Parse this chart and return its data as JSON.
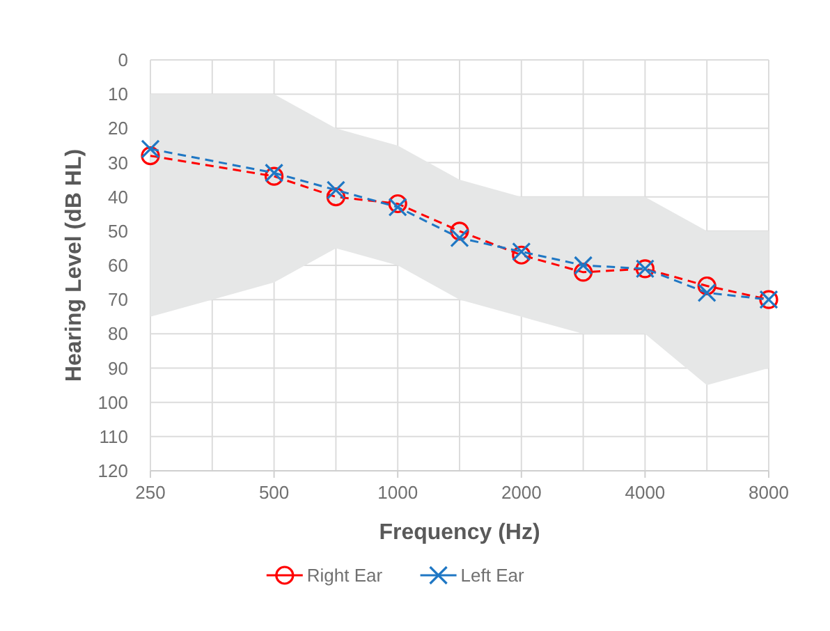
{
  "chart_data": {
    "type": "line",
    "xlabel": "Frequency (Hz)",
    "ylabel": "Hearing Level (dB HL)",
    "categories": [
      "250",
      null,
      "500",
      null,
      "1000",
      null,
      "2000",
      null,
      "4000",
      null,
      "8000"
    ],
    "series": [
      {
        "type": "area",
        "color": "#e6e7e7",
        "values": [
          null,
          null,
          null,
          null,
          null,
          null,
          null,
          null,
          null,
          null,
          null
        ],
        "lower": [
          75,
          70,
          65,
          55,
          60,
          70,
          75,
          80,
          80,
          95,
          90
        ],
        "upper": [
          10,
          10,
          10,
          20,
          25,
          35,
          40,
          40,
          40,
          50,
          50
        ]
      },
      {
        "name": "Right Ear",
        "color": "#ff0000",
        "marker": "circle",
        "values": [
          28,
          null,
          34,
          40,
          42,
          50,
          57,
          62,
          61,
          66,
          70
        ]
      },
      {
        "name": "Left Ear",
        "color": "#1f77c4",
        "marker": "cross",
        "values": [
          26,
          null,
          33,
          38,
          43,
          52,
          56,
          60,
          61,
          68,
          70
        ]
      }
    ],
    "ylim": [
      120,
      0
    ],
    "yticks": [
      0,
      10,
      20,
      30,
      40,
      50,
      60,
      70,
      80,
      90,
      100,
      110,
      120
    ],
    "grid": true,
    "legend": "bottom",
    "line_style": "dashed"
  }
}
